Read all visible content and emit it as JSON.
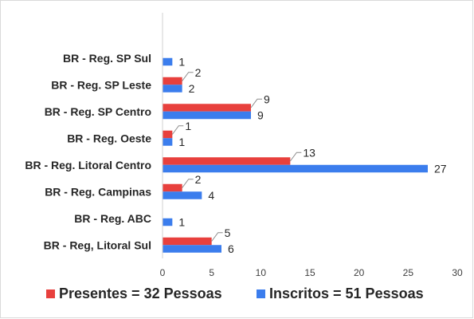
{
  "chart_data": {
    "type": "bar",
    "orientation": "horizontal",
    "categories": [
      "BR - Reg. SP Sul",
      "BR - Reg. SP Leste",
      "BR - Reg. SP Centro",
      "BR - Reg. Oeste",
      "BR - Reg. Litoral Centro",
      "BR - Reg. Campinas",
      "BR - Reg. ABC",
      "BR - Reg, Litoral Sul"
    ],
    "series": [
      {
        "name": "Presentes = 32 Pessoas",
        "color": "#e8403d",
        "values": [
          null,
          2,
          9,
          1,
          13,
          2,
          null,
          5
        ]
      },
      {
        "name": "Inscritos = 51 Pessoas",
        "color": "#3b7ded",
        "values": [
          1,
          2,
          9,
          1,
          27,
          4,
          1,
          6
        ]
      }
    ],
    "xlim": [
      0,
      30
    ],
    "xticks": [
      0,
      5,
      10,
      15,
      20,
      25,
      30
    ],
    "grid": false,
    "legend_position": "bottom"
  }
}
